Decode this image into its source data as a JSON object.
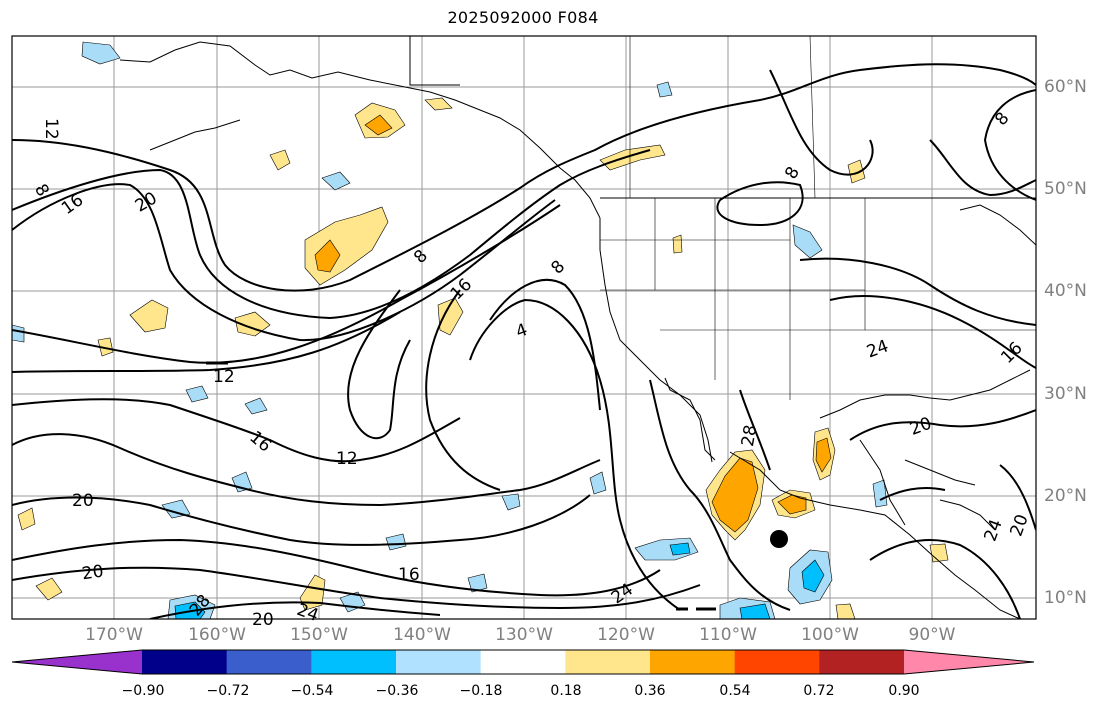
{
  "title": "2025092000 F084",
  "lat_labels": [
    "60°N",
    "50°N",
    "40°N",
    "30°N",
    "20°N",
    "10°N"
  ],
  "lon_labels": [
    "170°W",
    "160°W",
    "150°W",
    "140°W",
    "130°W",
    "120°W",
    "110°W",
    "100°W",
    "90°W"
  ],
  "contour_labels": [
    "4",
    "8",
    "12",
    "16",
    "20",
    "24",
    "28"
  ],
  "colorbar": {
    "ticks": [
      "−0.90",
      "−0.72",
      "−0.54",
      "−0.36",
      "−0.18",
      "0.18",
      "0.36",
      "0.54",
      "0.72",
      "0.90"
    ],
    "colors": [
      "#9932cc",
      "#00008b",
      "#3a5fcd",
      "#00bfff",
      "#b0e2ff",
      "#ffffff",
      "#ffe68c",
      "#ffa500",
      "#ff4500",
      "#b22222",
      "#ff88aa"
    ]
  },
  "colors": {
    "land_line": "#000000",
    "grid": "#9a9a9a",
    "light_blue": "#a8dcf7",
    "blue": "#00bfff",
    "yellow": "#ffe68c",
    "orange": "#ffa500"
  }
}
